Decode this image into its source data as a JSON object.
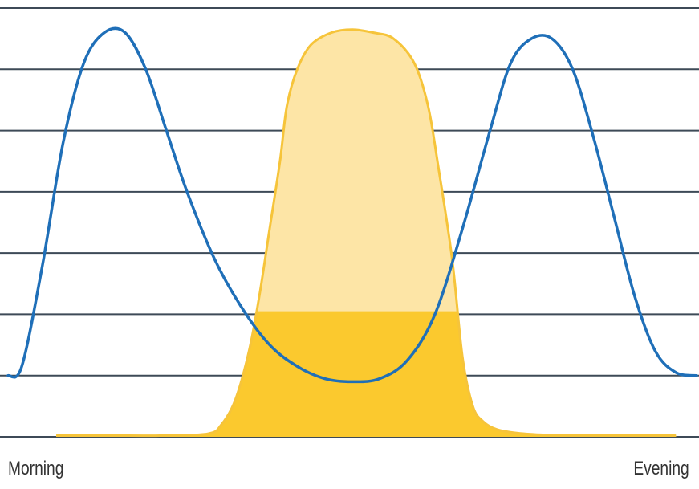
{
  "chart_data": {
    "type": "area",
    "title": "",
    "xlabel": "",
    "ylabel": "",
    "x_start_label": "Morning",
    "x_end_label": "Evening",
    "xlim": [
      0,
      100
    ],
    "ylim": [
      0,
      7
    ],
    "grid": true,
    "colors": {
      "grid": "#3d4a57",
      "blue_line": "#1f6fb8",
      "yellow_fill_dark": "#fbc92e",
      "yellow_fill_light": "#fde5a6",
      "yellow_line": "#f6c43a"
    },
    "series": [
      {
        "style": "line",
        "x": [
          0,
          2,
          5,
          8,
          11,
          14,
          17,
          20,
          23,
          26,
          30,
          34,
          38,
          42,
          46,
          50,
          54,
          58,
          62,
          66,
          70,
          73,
          76,
          79,
          82,
          85,
          88,
          91,
          94,
          97,
          100
        ],
        "y": [
          1.0,
          1.15,
          2.8,
          4.8,
          6.1,
          6.6,
          6.6,
          6.0,
          5.0,
          4.0,
          2.9,
          2.1,
          1.5,
          1.15,
          0.95,
          0.9,
          0.95,
          1.25,
          2.0,
          3.4,
          5.0,
          6.1,
          6.5,
          6.5,
          6.0,
          4.9,
          3.6,
          2.3,
          1.4,
          1.05,
          1.0
        ]
      },
      {
        "style": "area",
        "x": [
          7,
          15,
          22,
          29,
          31,
          33,
          35,
          36.5,
          38,
          39.5,
          40.5,
          42,
          44,
          47,
          50,
          53,
          56,
          59,
          61,
          62.5,
          64.5,
          66,
          67.5,
          69,
          71,
          74,
          78,
          83,
          88,
          92,
          97
        ],
        "y": [
          0.02,
          0.02,
          0.02,
          0.05,
          0.2,
          0.6,
          1.4,
          2.3,
          3.4,
          4.5,
          5.4,
          6.0,
          6.4,
          6.6,
          6.65,
          6.6,
          6.5,
          6.1,
          5.4,
          4.4,
          2.9,
          1.3,
          0.5,
          0.25,
          0.12,
          0.06,
          0.03,
          0.02,
          0.02,
          0.02,
          0.02
        ]
      }
    ]
  }
}
